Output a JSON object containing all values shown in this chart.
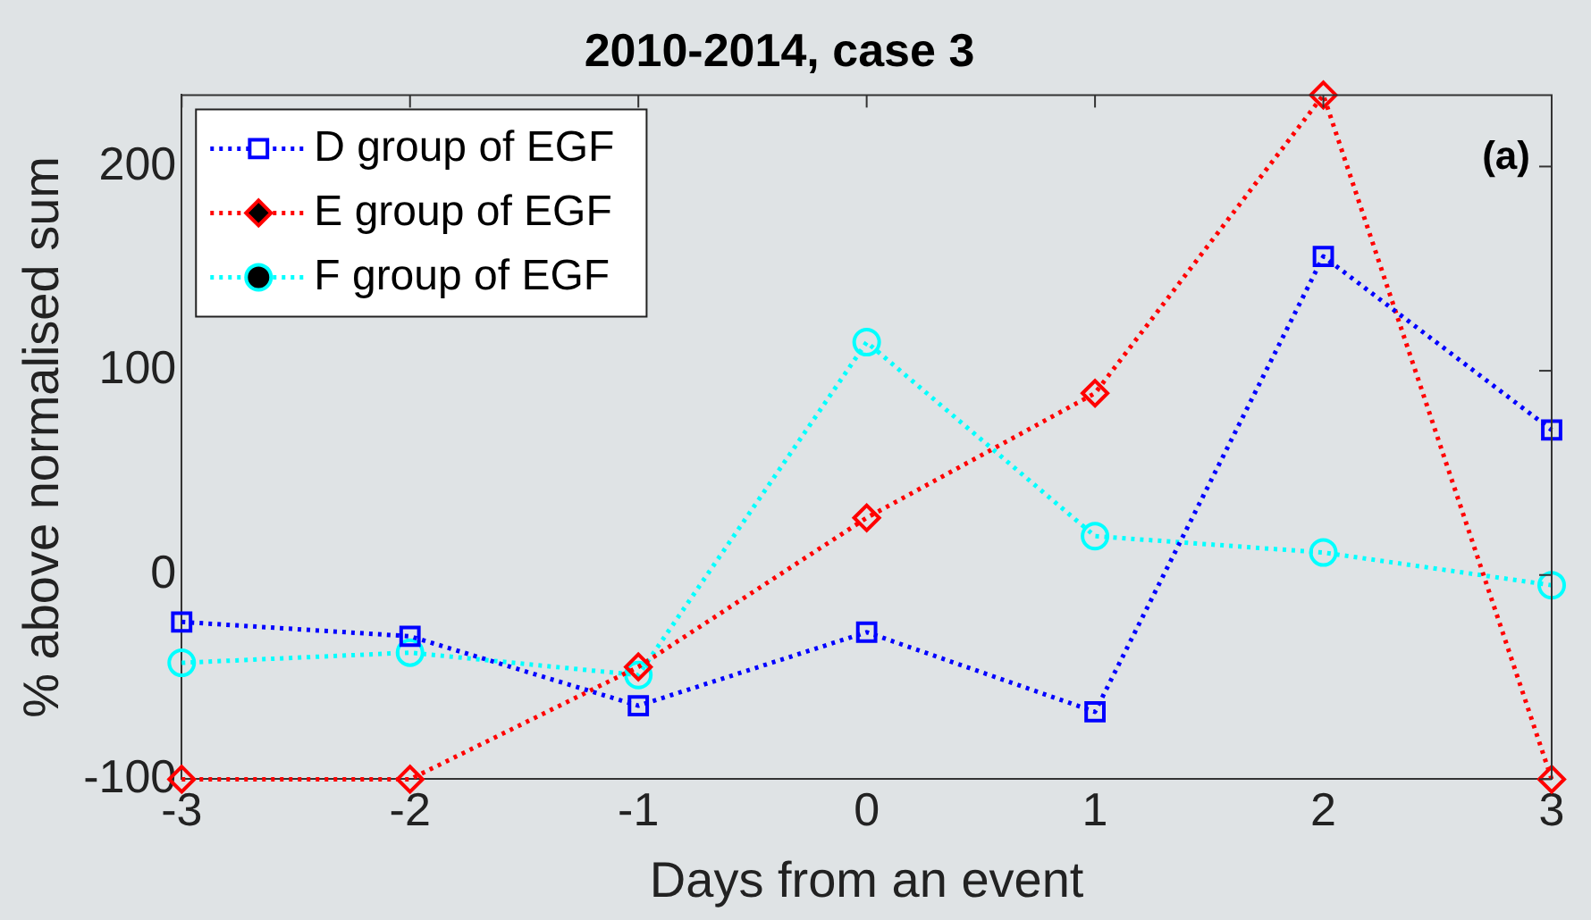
{
  "chart_data": {
    "type": "line",
    "title": "2010-2014, case 3",
    "xlabel": "Days from an event",
    "ylabel": "% above normalised sum",
    "x": [
      -3,
      -2,
      -1,
      0,
      1,
      2,
      3
    ],
    "series": [
      {
        "name": "D group of EGF",
        "color": "#0000ff",
        "marker": "square",
        "values": [
          -23,
          -30,
          -64,
          -28,
          -67,
          156,
          71
        ]
      },
      {
        "name": "E group of EGF",
        "color": "#ff0000",
        "marker": "diamond",
        "values": [
          -100,
          -100,
          -45,
          28,
          89,
          235,
          -100
        ]
      },
      {
        "name": "F group of EGF",
        "color": "#00ffff",
        "marker": "circle",
        "values": [
          -43,
          -38,
          -49,
          114,
          19,
          11,
          -5
        ]
      }
    ],
    "xlim": [
      -3,
      3
    ],
    "xticks": [
      -3,
      -2,
      -1,
      0,
      1,
      2,
      3
    ],
    "ylim": [
      -100,
      235
    ],
    "yticks": [
      -100,
      0,
      100,
      200
    ],
    "grid": false,
    "legend": "top left",
    "line_style": "dotted",
    "annotations": [
      "(a)"
    ]
  }
}
